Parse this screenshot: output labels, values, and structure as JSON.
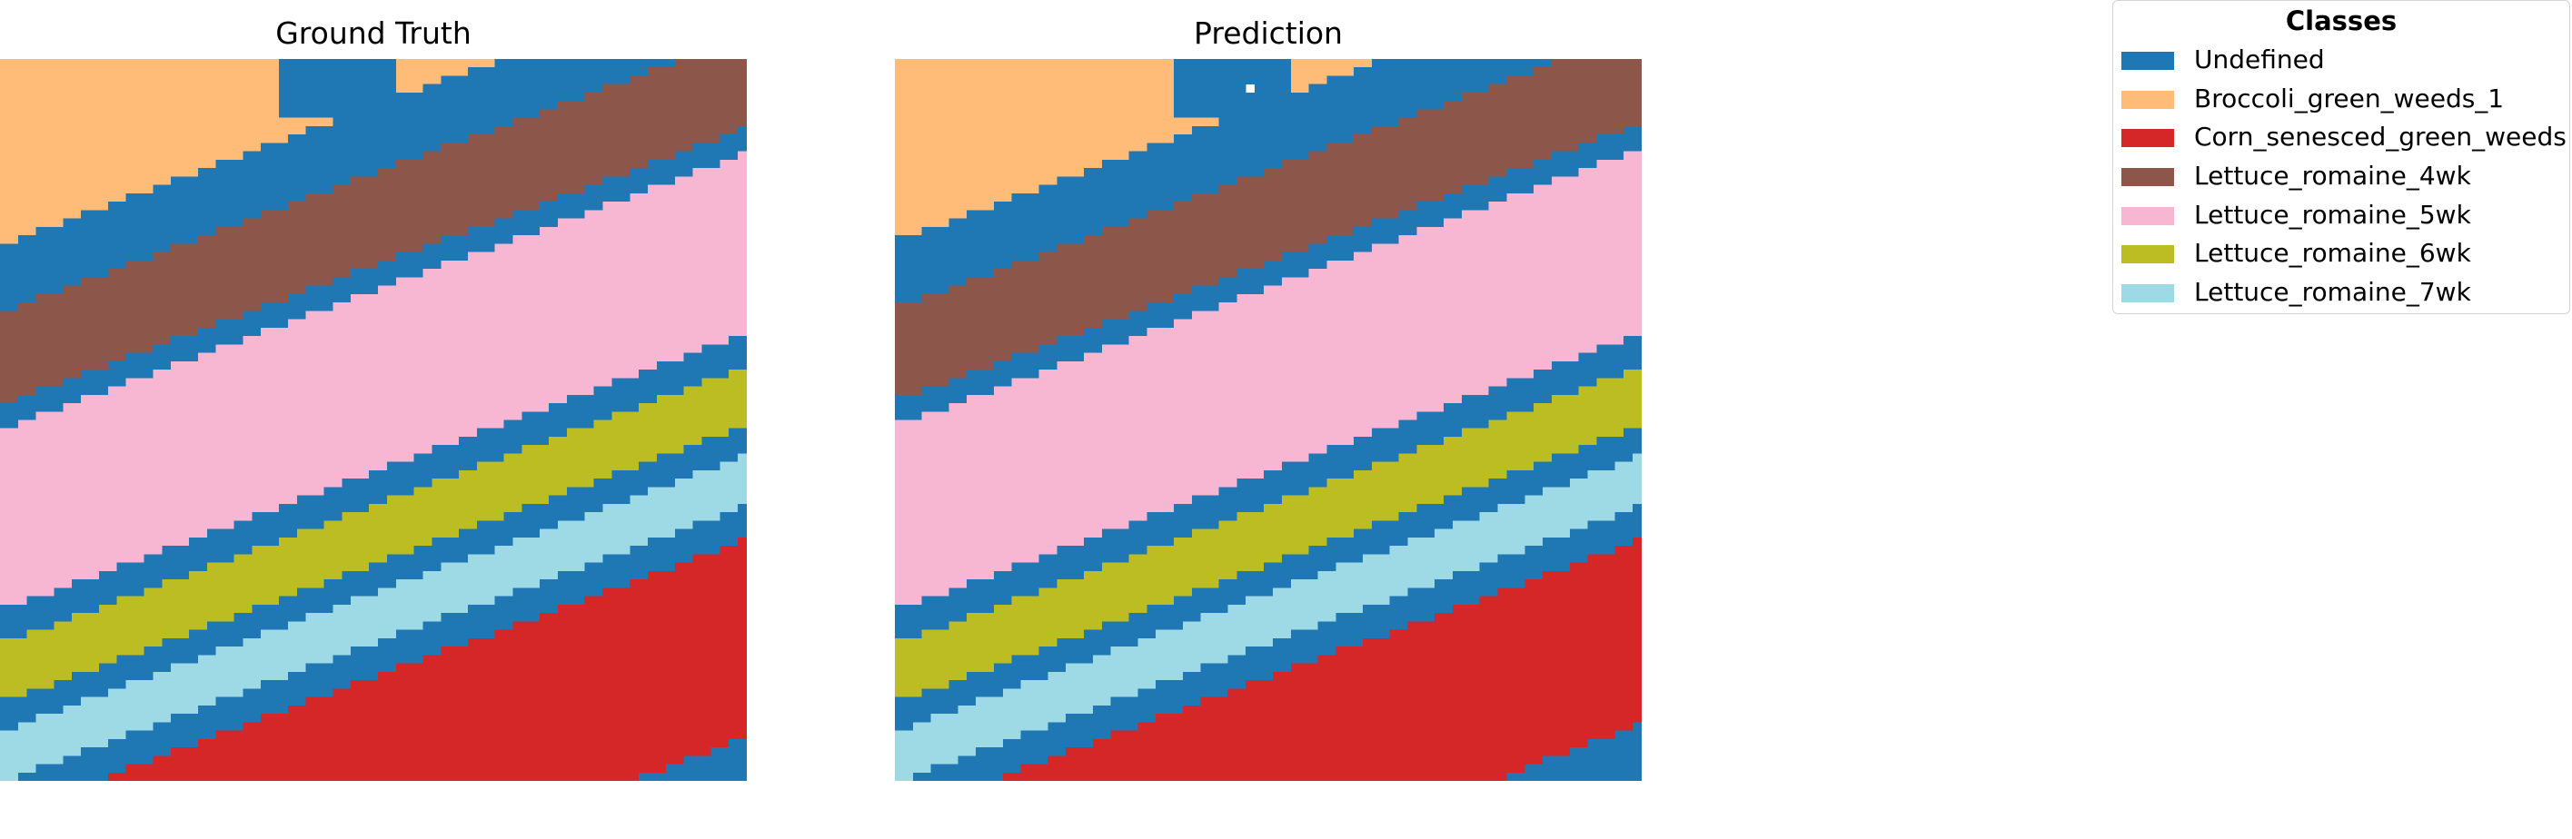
{
  "figure": {
    "legend_title": "Classes"
  },
  "panels": [
    {
      "title": "Ground Truth"
    },
    {
      "title": "Prediction"
    }
  ],
  "legend": [
    {
      "label": "Undefined",
      "color": "#1f77b4"
    },
    {
      "label": "Broccoli_green_weeds_1",
      "color": "#ffbb78"
    },
    {
      "label": "Corn_senesced_green_weeds",
      "color": "#d62728"
    },
    {
      "label": "Lettuce_romaine_4wk",
      "color": "#8c564b"
    },
    {
      "label": "Lettuce_romaine_5wk",
      "color": "#f7b6d2"
    },
    {
      "label": "Lettuce_romaine_6wk",
      "color": "#bcbd22"
    },
    {
      "label": "Lettuce_romaine_7wk",
      "color": "#9edae5"
    }
  ],
  "chart_data": {
    "type": "heatmap",
    "grid": false,
    "legend_placement": "top-right",
    "grid_size": [
      83,
      86
    ],
    "band_angle_dy_per_col": -0.398,
    "band_intercepts": [
      {
        "class": "Broccoli_green_weeds_1",
        "ground_truth_from": -1000,
        "ground_truth_to": 21.5,
        "prediction_from": -1000,
        "prediction_to": 21
      },
      {
        "class": "Undefined",
        "ground_truth_from": 21.5,
        "ground_truth_to": 29.5,
        "prediction_from": 21,
        "prediction_to": 29
      },
      {
        "class": "Lettuce_romaine_4wk",
        "ground_truth_from": 29.5,
        "ground_truth_to": 40.5,
        "prediction_from": 29,
        "prediction_to": 40
      },
      {
        "class": "Undefined",
        "ground_truth_from": 40.5,
        "ground_truth_to": 43.5,
        "prediction_from": 40,
        "prediction_to": 43
      },
      {
        "class": "Lettuce_romaine_5wk",
        "ground_truth_from": 43.5,
        "ground_truth_to": 65,
        "prediction_from": 43,
        "prediction_to": 65
      },
      {
        "class": "Undefined",
        "ground_truth_from": 65,
        "ground_truth_to": 69,
        "prediction_from": 65,
        "prediction_to": 69
      },
      {
        "class": "Lettuce_romaine_6wk",
        "ground_truth_from": 69,
        "ground_truth_to": 76,
        "prediction_from": 69,
        "prediction_to": 76
      },
      {
        "class": "Undefined",
        "ground_truth_from": 76,
        "ground_truth_to": 79.5,
        "prediction_from": 76,
        "prediction_to": 79.5
      },
      {
        "class": "Lettuce_romaine_7wk",
        "ground_truth_from": 79.5,
        "ground_truth_to": 85.5,
        "prediction_from": 79.5,
        "prediction_to": 85.5
      },
      {
        "class": "Undefined",
        "ground_truth_from": 85.5,
        "ground_truth_to": 89.5,
        "prediction_from": 85.5,
        "prediction_to": 89.5
      },
      {
        "class": "Corn_senesced_green_weeds",
        "ground_truth_from": 89.5,
        "ground_truth_to": 1000,
        "prediction_from": 89.5,
        "prediction_to": 1000
      }
    ],
    "lower_right_undefined_boundary": {
      "slope": -0.41,
      "ground_truth_intercept": 114.0,
      "prediction_intercept": 112.5
    },
    "top_edge_undefined_streak": {
      "rows": [
        0,
        6
      ],
      "ground_truth_cols": [
        31,
        43
      ],
      "prediction_cols": [
        31,
        43
      ]
    },
    "prediction_void_pixel": {
      "row": 3,
      "col": 39
    }
  }
}
